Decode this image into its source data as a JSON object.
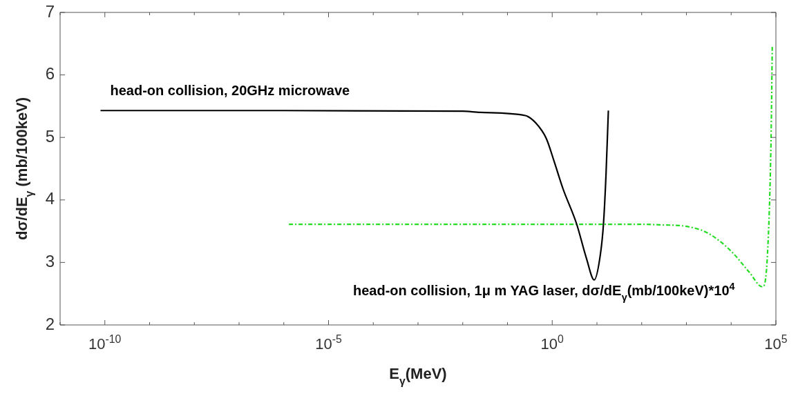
{
  "chart_data": {
    "type": "line",
    "xlabel": "E$_{γ}$(MeV)",
    "ylabel": "dσ/dE$_{γ}$ (mb/100keV)",
    "log": "x",
    "xlim": [
      1e-11,
      100000.0
    ],
    "ylim": [
      2,
      7
    ],
    "yticks": [
      2,
      3,
      4,
      5,
      6,
      7
    ],
    "xticks": [
      {
        "value": 1e-11,
        "label": null
      },
      {
        "value": 1e-10,
        "label": "10$^{-10}$"
      },
      {
        "value": 1e-09,
        "label": null
      },
      {
        "value": 1e-08,
        "label": null
      },
      {
        "value": 1e-07,
        "label": null
      },
      {
        "value": 1e-06,
        "label": null
      },
      {
        "value": 1e-05,
        "label": "10$^{-5}$"
      },
      {
        "value": 0.0001,
        "label": null
      },
      {
        "value": 0.001,
        "label": null
      },
      {
        "value": 0.01,
        "label": null
      },
      {
        "value": 0.1,
        "label": null
      },
      {
        "value": 1,
        "label": "10$^{0}$"
      },
      {
        "value": 10,
        "label": null
      },
      {
        "value": 100,
        "label": null
      },
      {
        "value": 1000,
        "label": null
      },
      {
        "value": 10000,
        "label": null
      },
      {
        "value": 100000,
        "label": "10$^{5}$"
      }
    ],
    "grid": false,
    "legend": false,
    "marker": "none",
    "series": [
      {
        "name": "head-on collision, 20GHz microwave",
        "color": "#000000",
        "line_style": "solid",
        "x": [
          8e-11,
          1e-06,
          0.01,
          0.025,
          0.25,
          0.43,
          0.74,
          1.1,
          1.74,
          3.5,
          5.8,
          8.7,
          12,
          14,
          16,
          18
        ],
        "values": [
          5.43,
          5.43,
          5.42,
          5.4,
          5.35,
          5.23,
          4.98,
          4.62,
          4.18,
          3.62,
          3.07,
          2.72,
          3.14,
          3.62,
          4.43,
          5.43
        ]
      },
      {
        "name": "head-on collision, 1μ m YAG laser, dσ/dE$_{γ}$(mb/100keV)*10$^{4}$",
        "color": "#22dd22",
        "line_style": "dashed",
        "x": [
          1.3e-06,
          1,
          100,
          300,
          930,
          3000,
          10000,
          25000,
          50000,
          65000,
          78000,
          83000
        ],
        "values": [
          3.61,
          3.61,
          3.61,
          3.6,
          3.58,
          3.47,
          3.18,
          2.85,
          2.61,
          3.14,
          4.98,
          6.45
        ]
      }
    ]
  }
}
